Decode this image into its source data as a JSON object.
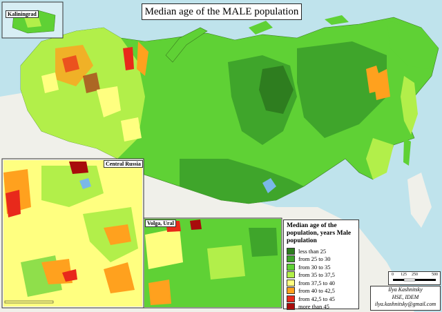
{
  "title": "Median age of the MALE population",
  "insets": {
    "kaliningrad": "Kaliningrad",
    "central": "Central Russia",
    "volga": "Volga, Ural"
  },
  "legend": {
    "title": "Median age of the population, years Male population",
    "items": [
      {
        "label": "less than 25",
        "color": "#2e7d1f"
      },
      {
        "label": "from 25 to 30",
        "color": "#3fa52b"
      },
      {
        "label": "from 30 to 35",
        "color": "#5fd135"
      },
      {
        "label": "from 35 to 37,5",
        "color": "#b2ef4a"
      },
      {
        "label": "from 37,5 to 40",
        "color": "#ffff80"
      },
      {
        "label": "from 40 to 42,5",
        "color": "#ffa11e"
      },
      {
        "label": "from 42,5 to 45",
        "color": "#e8291b"
      },
      {
        "label": "more than 45",
        "color": "#a80c0c"
      }
    ]
  },
  "credit": {
    "line1": "Ilya Kashnitsky",
    "line2": "HSE, IDEM",
    "line3": "ilya.kashnitsky@gmail.com"
  },
  "scale": {
    "t0": "0",
    "t1": "125",
    "t2": "250",
    "t3": "500"
  },
  "colors": {
    "sea": "#bfe3ec",
    "land_other": "#f2f2ee"
  }
}
